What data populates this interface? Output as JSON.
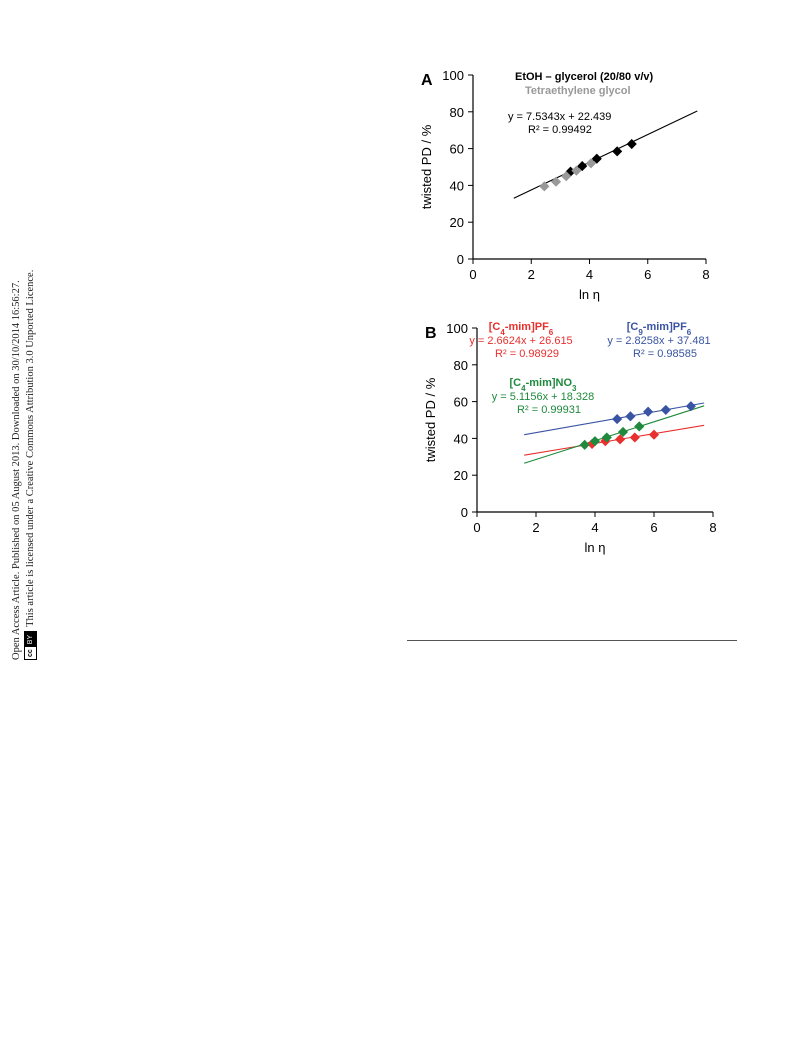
{
  "sidebar": {
    "line1": "Open Access Article. Published on 05 August 2013. Downloaded on 30/10/2014 16:56:27.",
    "line2": "This article is licensed under a Creative Commons Attribution 3.0 Unported Licence.",
    "badge_cc": "cc",
    "badge_by": "BY"
  },
  "chart_data": [
    {
      "type": "scatter",
      "panel_label": "A",
      "xlabel": "ln η",
      "ylabel": "twisted PD / %",
      "xlim": [
        0,
        8
      ],
      "ylim": [
        0,
        100
      ],
      "xticks": [
        0,
        2,
        4,
        6,
        8
      ],
      "yticks": [
        0,
        20,
        40,
        60,
        80,
        100
      ],
      "grid": false,
      "legend_placement": "top",
      "series": [
        {
          "name": "EtOH – glycerol (20/80 v/v)",
          "color": "#000000",
          "x": [
            3.35,
            3.75,
            4.25,
            4.95,
            5.45
          ],
          "y": [
            47.5,
            50.5,
            54.5,
            58.5,
            62.5
          ]
        },
        {
          "name": "Tetraethylene glycol",
          "color": "#999999",
          "x": [
            2.45,
            2.85,
            3.2,
            3.55,
            4.05
          ],
          "y": [
            39.5,
            42,
            45,
            48,
            52
          ]
        }
      ],
      "fits": [
        {
          "equation": "y = 7.5343x + 22.439",
          "r2": "R² = 0.99492",
          "slope": 7.5343,
          "intercept": 22.439,
          "x_range": [
            1.4,
            7.7
          ],
          "color": "#000000"
        }
      ]
    },
    {
      "type": "scatter",
      "panel_label": "B",
      "xlabel": "ln η",
      "ylabel": "twisted PD / %",
      "xlim": [
        0,
        8
      ],
      "ylim": [
        0,
        100
      ],
      "xticks": [
        0,
        2,
        4,
        6,
        8
      ],
      "yticks": [
        0,
        20,
        40,
        60,
        80,
        100
      ],
      "grid": false,
      "legend_placement": "top",
      "series": [
        {
          "name": "[C4-mim]PF6",
          "color": "#e8302e",
          "x": [
            3.9,
            4.35,
            4.85,
            5.35,
            6.0
          ],
          "y": [
            37,
            38.5,
            39.5,
            40.5,
            42
          ]
        },
        {
          "name": "[C9-mim]PF6",
          "color": "#3a54a4",
          "x": [
            4.75,
            5.2,
            5.8,
            6.4,
            7.25
          ],
          "y": [
            50.5,
            52,
            54.5,
            55.5,
            57.5
          ]
        },
        {
          "name": "[C4-mim]NO3",
          "color": "#1f8a3d",
          "x": [
            3.65,
            4.0,
            4.4,
            4.95,
            5.5
          ],
          "y": [
            36.5,
            38.5,
            40.5,
            43.5,
            46.5
          ]
        }
      ],
      "fits": [
        {
          "name": "[C4-mim]PF6",
          "equation": "y = 2.6624x + 26.615",
          "r2": "R² = 0.98929",
          "slope": 2.6624,
          "intercept": 26.615,
          "x_range": [
            1.6,
            7.7
          ],
          "color": "#e8302e"
        },
        {
          "name": "[C9-mim]PF6",
          "equation": "y = 2.8258x + 37.481",
          "r2": "R² = 0.98585",
          "slope": 2.8258,
          "intercept": 37.481,
          "x_range": [
            1.6,
            7.7
          ],
          "color": "#3a54a4"
        },
        {
          "name": "[C4-mim]NO3",
          "equation": "y = 5.1156x + 18.328",
          "r2": "R² = 0.99931",
          "slope": 5.1156,
          "intercept": 18.328,
          "x_range": [
            1.6,
            7.7
          ],
          "color": "#1f8a3d"
        }
      ]
    }
  ]
}
